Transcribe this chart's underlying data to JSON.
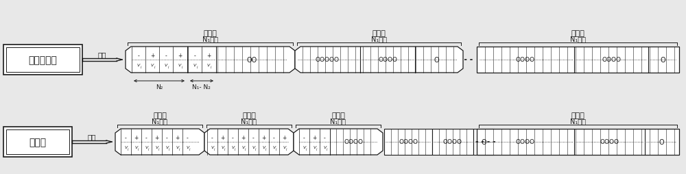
{
  "bg_color": "#e8e8e8",
  "box_color": "#ffffff",
  "line_color": "#1a1a1a",
  "row1": {
    "label": "字符同步帧",
    "expand_text": "展开",
    "sections_top": [
      "第一节",
      "第二节",
      "第十节"
    ],
    "n_labels": [
      "N₁个点",
      "N₁个点",
      "N₁个点"
    ],
    "bottom_n2": "N₂",
    "bottom_n1n2": "N₁- N₂"
  },
  "row2": {
    "label": "标志帧",
    "expand_text": "展开",
    "sections_top": [
      "第一节",
      "第二节",
      "第三节",
      "第十节"
    ],
    "n_labels": [
      "N₁个点",
      "N₁个点",
      "N₁个点",
      "N₁个点"
    ]
  }
}
